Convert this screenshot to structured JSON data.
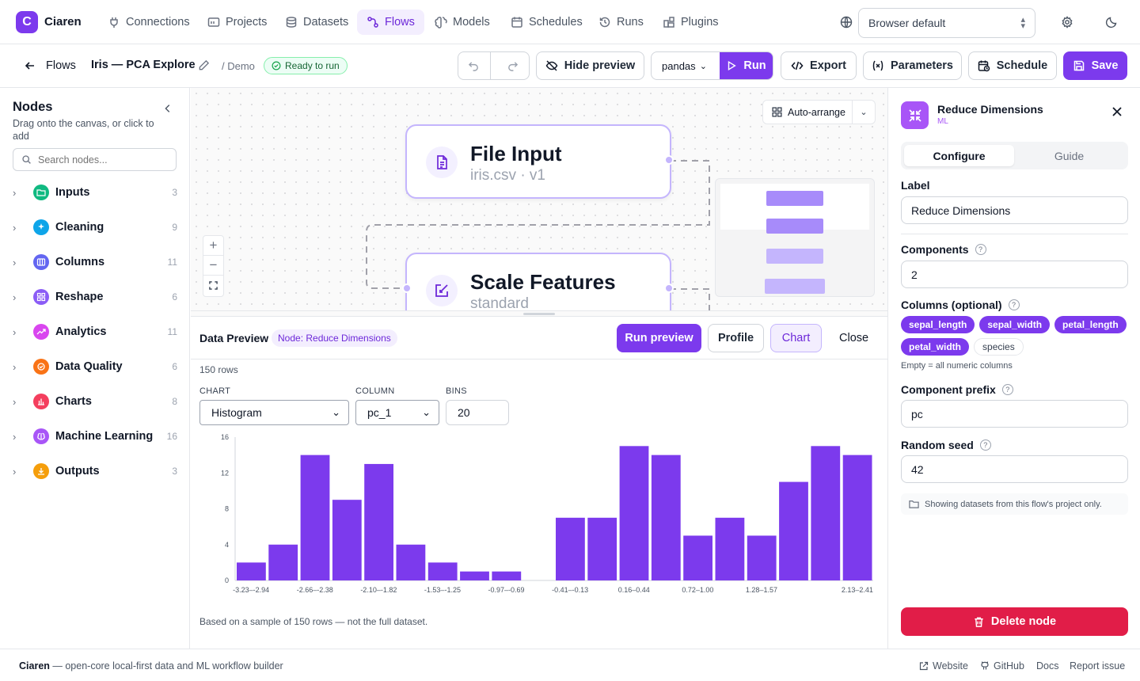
{
  "brand": {
    "logo_letter": "C",
    "name": "Ciaren"
  },
  "nav": [
    {
      "label": "Connections",
      "icon": "plug-icon"
    },
    {
      "label": "Projects",
      "icon": "folder-icon"
    },
    {
      "label": "Datasets",
      "icon": "database-icon"
    },
    {
      "label": "Flows",
      "icon": "flow-icon",
      "active": true
    },
    {
      "label": "Models",
      "icon": "brain-icon"
    },
    {
      "label": "Schedules",
      "icon": "calendar-icon"
    },
    {
      "label": "Runs",
      "icon": "history-icon"
    },
    {
      "label": "Plugins",
      "icon": "puzzle-icon"
    }
  ],
  "language": {
    "value": "Browser default"
  },
  "toolbar": {
    "back_label": "Flows",
    "flow_name": "Iris — PCA Explore",
    "project": "/ Demo",
    "status": "Ready to run",
    "hide_preview": "Hide preview",
    "engine": "pandas",
    "run": "Run",
    "export": "Export",
    "parameters": "Parameters",
    "schedule": "Schedule",
    "save": "Save"
  },
  "sidebar": {
    "title": "Nodes",
    "subtitle": "Drag onto the canvas, or click to add",
    "search_placeholder": "Search nodes...",
    "categories": [
      {
        "label": "Inputs",
        "count": "3",
        "color": "#10b981",
        "icon": "folder-open-icon"
      },
      {
        "label": "Cleaning",
        "count": "9",
        "color": "#0ea5e9",
        "icon": "sparkles-icon"
      },
      {
        "label": "Columns",
        "count": "11",
        "color": "#6366f1",
        "icon": "columns-icon"
      },
      {
        "label": "Reshape",
        "count": "6",
        "color": "#8b5cf6",
        "icon": "grid-icon"
      },
      {
        "label": "Analytics",
        "count": "11",
        "color": "#d946ef",
        "icon": "trending-up-icon"
      },
      {
        "label": "Data Quality",
        "count": "6",
        "color": "#f97316",
        "icon": "shield-check-icon"
      },
      {
        "label": "Charts",
        "count": "8",
        "color": "#f43f5e",
        "icon": "bar-chart-icon"
      },
      {
        "label": "Machine Learning",
        "count": "16",
        "color": "#a855f7",
        "icon": "brain-icon"
      },
      {
        "label": "Outputs",
        "count": "3",
        "color": "#f59e0b",
        "icon": "download-icon"
      }
    ]
  },
  "canvas": {
    "auto_arrange": "Auto-arrange",
    "nodes": [
      {
        "title": "File Input",
        "subtitle": "iris.csv · v1"
      },
      {
        "title": "Scale Features",
        "subtitle": "standard"
      }
    ]
  },
  "preview": {
    "title": "Data Preview",
    "node_badge": "Node: Reduce Dimensions",
    "run_preview": "Run preview",
    "profile": "Profile",
    "chart": "Chart",
    "close": "Close",
    "rows": "150 rows",
    "chart_label": "CHART",
    "chart_value": "Histogram",
    "column_label": "COLUMN",
    "column_value": "pc_1",
    "bins_label": "BINS",
    "bins_value": "20",
    "note": "Based on a sample of 150 rows — not the full dataset."
  },
  "chart_data": {
    "type": "bar",
    "bar_color": "#7c3aed",
    "ylim": [
      0,
      16
    ],
    "y_ticks": [
      "0",
      "4",
      "8",
      "12",
      "16"
    ],
    "values": [
      2,
      4,
      14,
      9,
      13,
      4,
      2,
      1,
      1,
      0,
      7,
      7,
      15,
      14,
      5,
      7,
      5,
      11,
      15,
      14
    ],
    "x_tick_labels": [
      {
        "bin": 0,
        "label": "-3.23–-2.94"
      },
      {
        "bin": 2,
        "label": "-2.66–-2.38"
      },
      {
        "bin": 4,
        "label": "-2.10–-1.82"
      },
      {
        "bin": 6,
        "label": "-1.53–-1.25"
      },
      {
        "bin": 8,
        "label": "-0.97–-0.69"
      },
      {
        "bin": 10,
        "label": "-0.41–-0.13"
      },
      {
        "bin": 12,
        "label": "0.16–0.44"
      },
      {
        "bin": 14,
        "label": "0.72–1.00"
      },
      {
        "bin": 16,
        "label": "1.28–1.57"
      },
      {
        "bin": 19,
        "label": "2.13–2.41"
      }
    ]
  },
  "rpanel": {
    "node_title": "Reduce Dimensions",
    "node_category": "ML",
    "tab_configure": "Configure",
    "tab_guide": "Guide",
    "label_label": "Label",
    "label_value": "Reduce Dimensions",
    "components_label": "Components",
    "components_value": "2",
    "columns_label": "Columns (optional)",
    "columns": [
      {
        "name": "sepal_length",
        "selected": true
      },
      {
        "name": "sepal_width",
        "selected": true
      },
      {
        "name": "petal_length",
        "selected": true
      },
      {
        "name": "petal_width",
        "selected": true
      },
      {
        "name": "species",
        "selected": false
      }
    ],
    "columns_hint": "Empty = all numeric columns",
    "prefix_label": "Component prefix",
    "prefix_value": "pc",
    "seed_label": "Random seed",
    "seed_value": "42",
    "info": "Showing datasets from this flow's project only.",
    "delete": "Delete node"
  },
  "footer": {
    "brand": "Ciaren",
    "tagline": " — open-core local-first data and ML workflow builder",
    "website": "Website",
    "github": "GitHub",
    "docs": "Docs",
    "report": "Report issue"
  }
}
